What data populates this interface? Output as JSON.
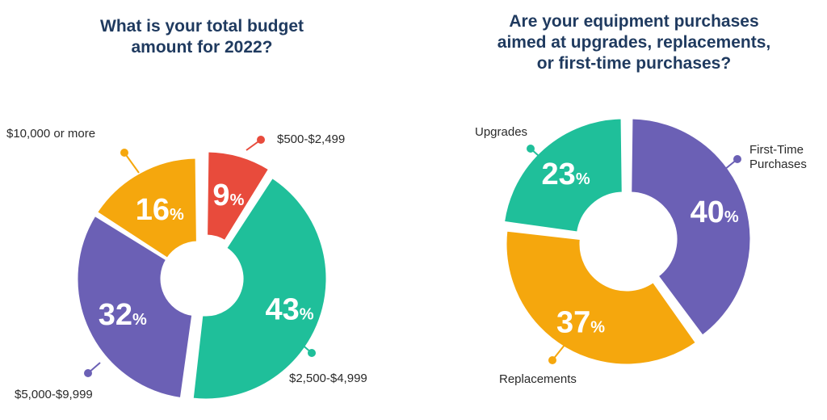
{
  "chart_data": [
    {
      "type": "pie",
      "title": "What is your total budget\namount for 2022?",
      "categories": [
        "$500-$2,499",
        "$2,500-$4,999",
        "$5,000-$9,999",
        "$10,000 or more"
      ],
      "values": [
        9,
        43,
        32,
        16
      ],
      "unit": "%",
      "colors": [
        "#e84b3c",
        "#1fbf9a",
        "#6b60b5",
        "#f5a70d"
      ],
      "legend": "callout labels"
    },
    {
      "type": "pie",
      "title": "Are your equipment purchases\naimed at upgrades, replacements,\nor first-time purchases?",
      "categories": [
        "First-Time\nPurchases",
        "Replacements",
        "Upgrades"
      ],
      "values": [
        40,
        37,
        23
      ],
      "unit": "%",
      "colors": [
        "#6b60b5",
        "#f5a70d",
        "#1fbf9a"
      ],
      "legend": "callout labels"
    }
  ]
}
